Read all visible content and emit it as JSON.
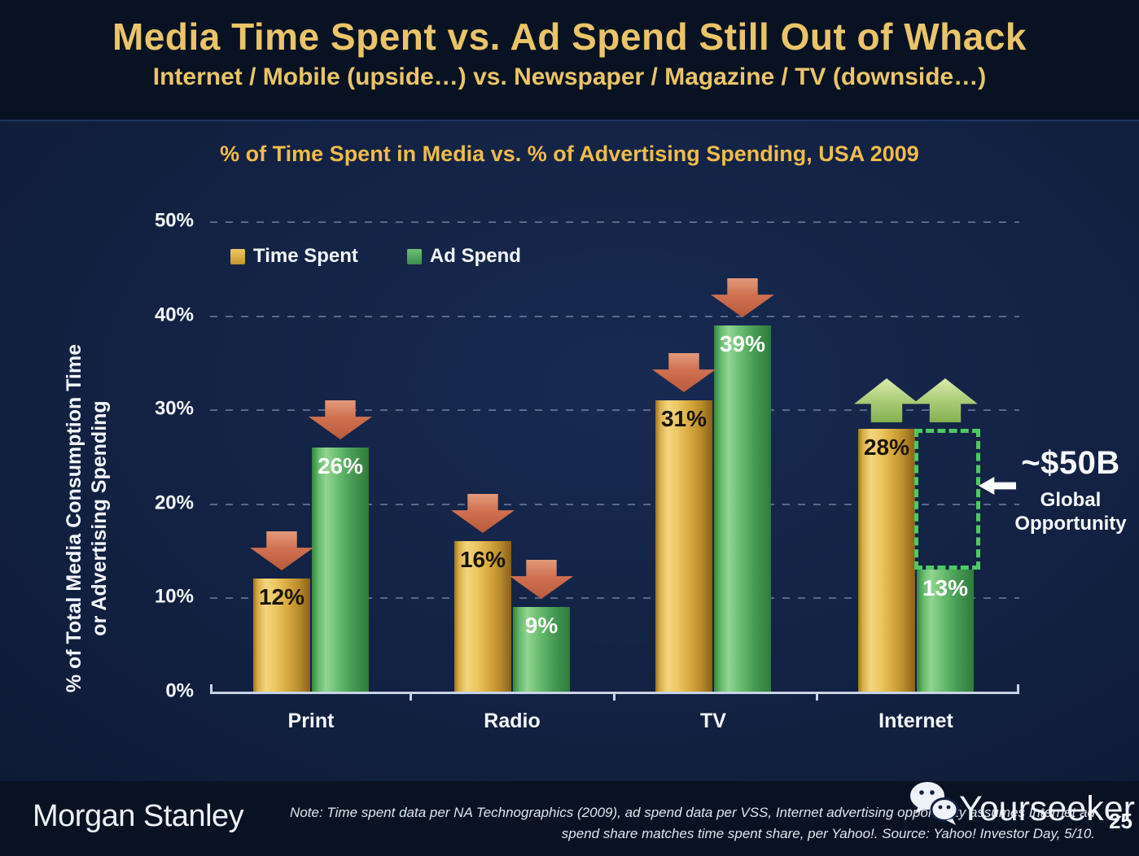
{
  "slide": {
    "title": "Media Time Spent vs. Ad Spend Still Out of Whack",
    "subtitle": "Internet / Mobile (upside…) vs. Newspaper / Magazine / TV (downside…)",
    "page_number": "25"
  },
  "chart_data": {
    "type": "bar",
    "title": "% of Time Spent in Media vs. % of Advertising Spending, USA 2009",
    "categories": [
      "Print",
      "Radio",
      "TV",
      "Internet"
    ],
    "series": [
      {
        "name": "Time Spent",
        "color": "#d9a93f",
        "values": [
          12,
          16,
          31,
          28
        ]
      },
      {
        "name": "Ad Spend",
        "color": "#4ea95d",
        "values": [
          26,
          9,
          39,
          13
        ]
      }
    ],
    "value_labels": [
      [
        "12%",
        "16%",
        "31%",
        "28%"
      ],
      [
        "26%",
        "9%",
        "39%",
        "13%"
      ]
    ],
    "value_suffix": "%",
    "ylabel": "% of Total Media Consumption Time or Advertising Spending",
    "ylabel_lines": [
      "% of Total Media Consumption Time",
      "or Advertising Spending"
    ],
    "yticks": [
      0,
      10,
      20,
      30,
      40,
      50
    ],
    "ytick_labels": [
      "0%",
      "10%",
      "20%",
      "30%",
      "40%",
      "50%"
    ],
    "ylim": [
      0,
      50
    ],
    "grid": "dashed-horizontal",
    "legend_position": "top-left-inside",
    "trend_arrows": [
      "down",
      "down",
      "down",
      "up"
    ],
    "annotation": {
      "label_main": "~$50B",
      "label_sub": "Global Opportunity",
      "box_category": "Internet",
      "box_from": 13,
      "box_to": 28
    }
  },
  "footer": {
    "brand": "Morgan Stanley",
    "note_line1": "Note: Time spent data per NA Technographics (2009), ad spend data per VSS, Internet advertising opportunity assumes Internet ad",
    "note_line2": "spend share matches time spent share, per Yahoo!. Source: Yahoo! Investor Day, 5/10.",
    "watermark": "Yourseeker"
  },
  "colors": {
    "background": "#081222",
    "panel": "#132243",
    "title_gold": "#eac469",
    "chart_title_gold": "#f0bc4a",
    "bar_gold": "#d9a93f",
    "bar_green": "#4ea95d",
    "arrow_down_salmon": "#cf7050",
    "arrow_up_green": "#aacd78",
    "opportunity_box_green": "#4ec965",
    "text_white": "#f4f6fa"
  }
}
